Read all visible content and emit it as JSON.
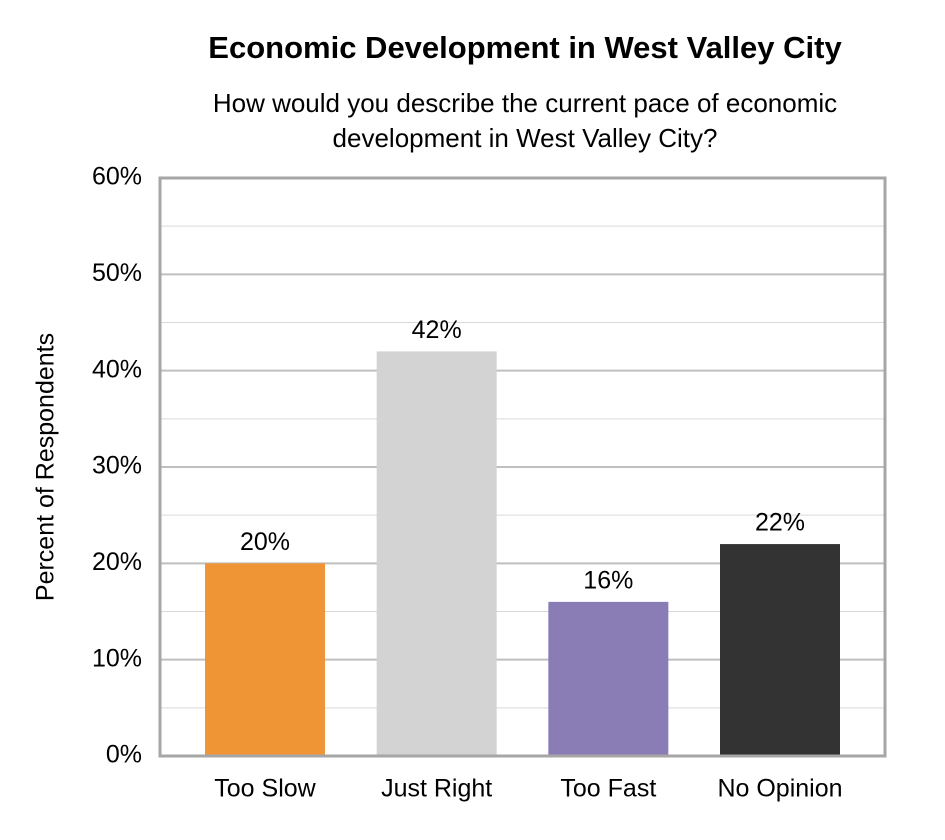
{
  "chart_data": {
    "type": "bar",
    "title": "Economic Development in West Valley City",
    "subtitle": "How would you describe the current pace of economic development in West Valley City?",
    "y_label": "Percent of Respondents",
    "categories": [
      "Too Slow",
      "Just Right",
      "Too Fast",
      "No Opinion"
    ],
    "values": [
      20,
      42,
      16,
      22
    ],
    "value_labels": [
      "20%",
      "42%",
      "16%",
      "22%"
    ],
    "colors": [
      "#ef9535",
      "#d3d3d3",
      "#8a7cb5",
      "#333333"
    ],
    "ylim": [
      0,
      60
    ],
    "yticks": [
      {
        "value": 0,
        "label": "0%"
      },
      {
        "value": 10,
        "label": "10%"
      },
      {
        "value": 20,
        "label": "20%"
      },
      {
        "value": 30,
        "label": "30%"
      },
      {
        "value": 40,
        "label": "40%"
      },
      {
        "value": 50,
        "label": "50%"
      },
      {
        "value": 60,
        "label": "60%"
      }
    ],
    "yminor_ticks": [
      5,
      15,
      25,
      35,
      45,
      55
    ],
    "grid": true
  }
}
